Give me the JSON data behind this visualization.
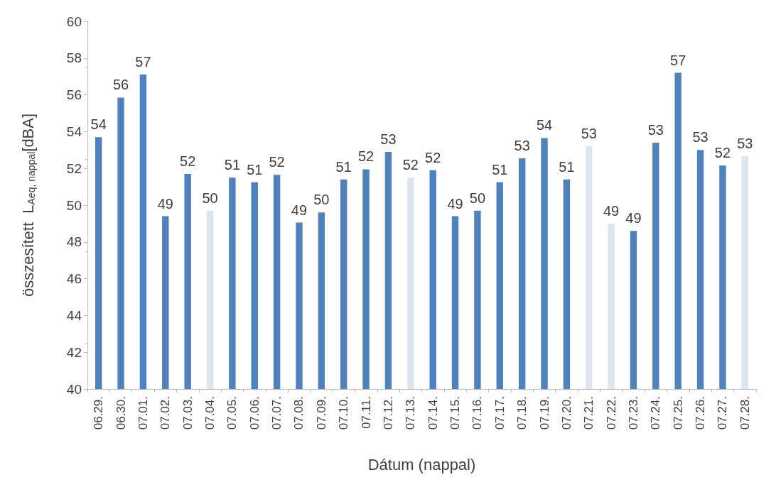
{
  "chart_data": {
    "type": "bar",
    "xlabel": "Dátum (nappal)",
    "ylabel": "összesített  L$_{Aeq, nappal}$[dBA]",
    "categories": [
      "06.29.",
      "06.30.",
      "07.01.",
      "07.02.",
      "07.03.",
      "07.04.",
      "07.05.",
      "07.06.",
      "07.07.",
      "07.08.",
      "07.09.",
      "07.10.",
      "07.11.",
      "07.12.",
      "07.13.",
      "07.14.",
      "07.15.",
      "07.16.",
      "07.17.",
      "07.18.",
      "07.19.",
      "07.20.",
      "07.21.",
      "07.22.",
      "07.23.",
      "07.24.",
      "07.25.",
      "07.26.",
      "07.27.",
      "07.28."
    ],
    "values": [
      53.7,
      55.85,
      57.1,
      49.4,
      51.7,
      49.7,
      51.5,
      51.25,
      51.65,
      49.05,
      49.6,
      51.4,
      51.95,
      52.9,
      51.5,
      51.9,
      49.4,
      49.7,
      51.25,
      52.55,
      53.65,
      51.4,
      53.2,
      49.0,
      48.6,
      53.4,
      57.2,
      53.0,
      52.15,
      52.65
    ],
    "value_labels": [
      "54",
      "56",
      "57",
      "49",
      "52",
      "50",
      "51",
      "51",
      "52",
      "49",
      "50",
      "51",
      "52",
      "53",
      "52",
      "52",
      "49",
      "50",
      "51",
      "53",
      "54",
      "51",
      "53",
      "49",
      "49",
      "53",
      "57",
      "53",
      "52",
      "53"
    ],
    "colors": [
      "#4f81bd",
      "#4f81bd",
      "#4f81bd",
      "#4f81bd",
      "#4f81bd",
      "#dce6f2",
      "#4f81bd",
      "#4f81bd",
      "#4f81bd",
      "#4f81bd",
      "#4f81bd",
      "#4f81bd",
      "#4f81bd",
      "#4f81bd",
      "#dce6f2",
      "#4f81bd",
      "#4f81bd",
      "#4f81bd",
      "#4f81bd",
      "#4f81bd",
      "#4f81bd",
      "#4f81bd",
      "#dce6f2",
      "#dce6f2",
      "#4f81bd",
      "#4f81bd",
      "#4f81bd",
      "#4f81bd",
      "#4f81bd",
      "#dce6f2"
    ],
    "ylim": [
      40,
      60
    ],
    "yticks": [
      40,
      42,
      44,
      46,
      48,
      50,
      52,
      54,
      56,
      58,
      60
    ],
    "grid": false
  }
}
